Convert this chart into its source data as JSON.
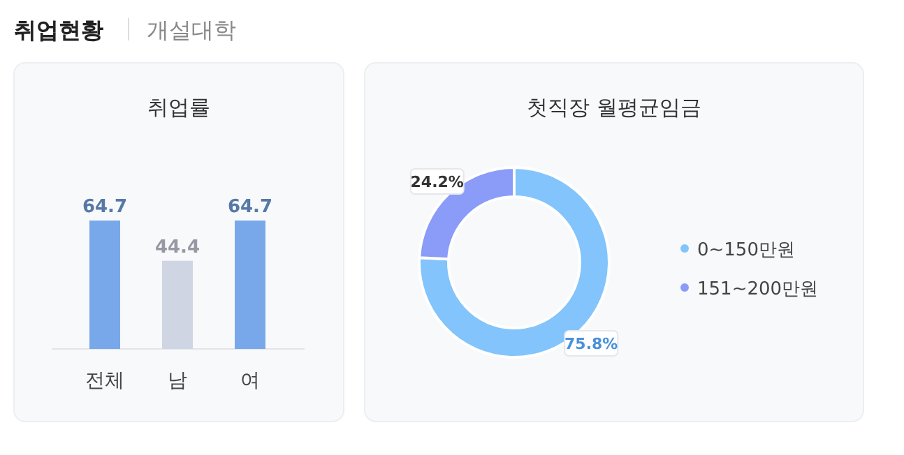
{
  "chart_data": [
    {
      "type": "other",
      "annotations": [
        "취업현황",
        "개설대학"
      ]
    },
    {
      "type": "bar",
      "title": "취업률",
      "categories": [
        "전체",
        "남",
        "여"
      ],
      "values": [
        64.7,
        44.4,
        64.7
      ],
      "colors": [
        "#78a8ea",
        "#d0d5e3",
        "#78a8ea"
      ],
      "data_labels": true
    },
    {
      "type": "donut",
      "title": "첫직장 월평균임금",
      "categories": [
        "0~150만원",
        "151~200만원"
      ],
      "values": [
        75.8,
        24.2
      ],
      "colors": [
        "#82c4fb",
        "#8a9bf8"
      ],
      "value_labels": [
        "75.8%",
        "24.2%"
      ],
      "legend": "right"
    }
  ]
}
